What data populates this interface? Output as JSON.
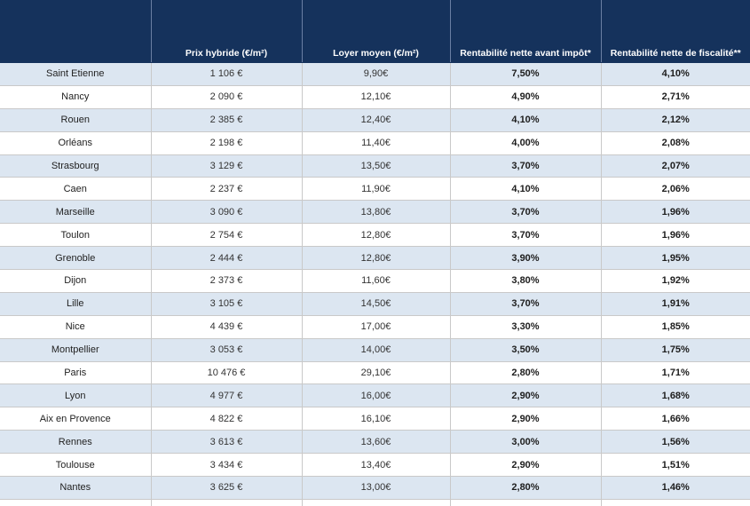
{
  "table": {
    "headers": [
      "",
      "Prix hybride (€/m²)",
      "Loyer moyen (€/m²)",
      "Rentabilité nette avant impôt*",
      "Rentabilité nette de fiscalité**"
    ],
    "rows": [
      {
        "city": "Saint Etienne",
        "price": "1 106 €",
        "rent": "9,90€",
        "net_before_tax": "7,50%",
        "net_after_tax": "4,10%"
      },
      {
        "city": "Nancy",
        "price": "2 090 €",
        "rent": "12,10€",
        "net_before_tax": "4,90%",
        "net_after_tax": "2,71%"
      },
      {
        "city": "Rouen",
        "price": "2 385 €",
        "rent": "12,40€",
        "net_before_tax": "4,10%",
        "net_after_tax": "2,12%"
      },
      {
        "city": "Orléans",
        "price": "2 198 €",
        "rent": "11,40€",
        "net_before_tax": "4,00%",
        "net_after_tax": "2,08%"
      },
      {
        "city": "Strasbourg",
        "price": "3 129 €",
        "rent": "13,50€",
        "net_before_tax": "3,70%",
        "net_after_tax": "2,07%"
      },
      {
        "city": "Caen",
        "price": "2 237 €",
        "rent": "11,90€",
        "net_before_tax": "4,10%",
        "net_after_tax": "2,06%"
      },
      {
        "city": "Marseille",
        "price": "3 090 €",
        "rent": "13,80€",
        "net_before_tax": "3,70%",
        "net_after_tax": "1,96%"
      },
      {
        "city": "Toulon",
        "price": "2 754 €",
        "rent": "12,80€",
        "net_before_tax": "3,70%",
        "net_after_tax": "1,96%"
      },
      {
        "city": "Grenoble",
        "price": "2 444 €",
        "rent": "12,80€",
        "net_before_tax": "3,90%",
        "net_after_tax": "1,95%"
      },
      {
        "city": "Dijon",
        "price": "2 373 €",
        "rent": "11,60€",
        "net_before_tax": "3,80%",
        "net_after_tax": "1,92%"
      },
      {
        "city": "Lille",
        "price": "3 105 €",
        "rent": "14,50€",
        "net_before_tax": "3,70%",
        "net_after_tax": "1,91%"
      },
      {
        "city": "Nice",
        "price": "4 439 €",
        "rent": "17,00€",
        "net_before_tax": "3,30%",
        "net_after_tax": "1,85%"
      },
      {
        "city": "Montpellier",
        "price": "3 053 €",
        "rent": "14,00€",
        "net_before_tax": "3,50%",
        "net_after_tax": "1,75%"
      },
      {
        "city": "Paris",
        "price": "10 476 €",
        "rent": "29,10€",
        "net_before_tax": "2,80%",
        "net_after_tax": "1,71%"
      },
      {
        "city": "Lyon",
        "price": "4 977 €",
        "rent": "16,00€",
        "net_before_tax": "2,90%",
        "net_after_tax": "1,68%"
      },
      {
        "city": "Aix en Provence",
        "price": "4 822 €",
        "rent": "16,10€",
        "net_before_tax": "2,90%",
        "net_after_tax": "1,66%"
      },
      {
        "city": "Rennes",
        "price": "3 613 €",
        "rent": "13,60€",
        "net_before_tax": "3,00%",
        "net_after_tax": "1,56%"
      },
      {
        "city": "Toulouse",
        "price": "3 434 €",
        "rent": "13,40€",
        "net_before_tax": "2,90%",
        "net_after_tax": "1,51%"
      },
      {
        "city": "Nantes",
        "price": "3 625 €",
        "rent": "13,00€",
        "net_before_tax": "2,80%",
        "net_after_tax": "1,46%"
      },
      {
        "city": "",
        "price": "",
        "rent": "",
        "net_before_tax": "",
        "net_after_tax": ""
      }
    ]
  },
  "colors": {
    "header_bg": "#15325c",
    "row_alt_bg": "#dce6f1",
    "row_bg": "#ffffff"
  }
}
